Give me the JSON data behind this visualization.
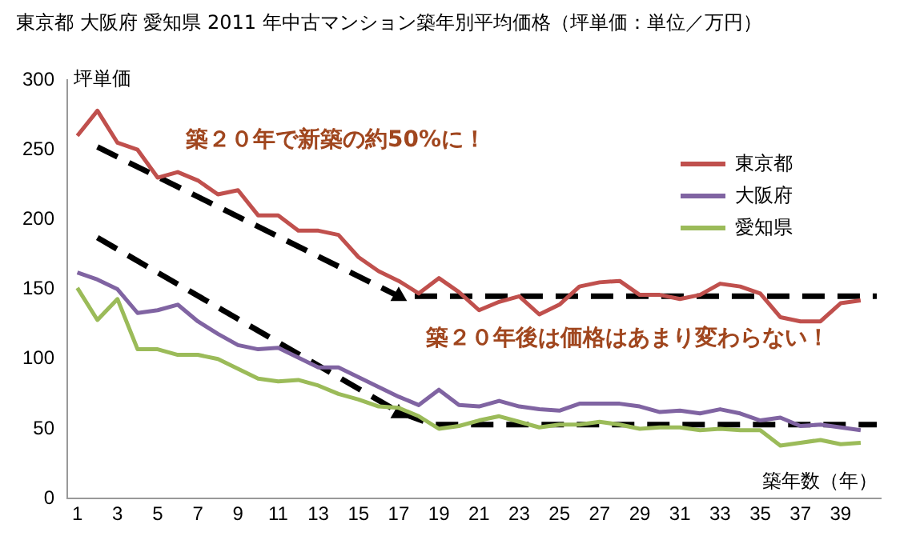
{
  "chart_data": {
    "type": "line",
    "title": "東京都  大阪府  愛知県  2011 年中古マンション築年別平均価格（坪単価：単位／万円）",
    "ylabel": "坪単価",
    "xlabel": "築年数（年）",
    "x": [
      1,
      2,
      3,
      4,
      5,
      6,
      7,
      8,
      9,
      10,
      11,
      12,
      13,
      14,
      15,
      16,
      17,
      18,
      19,
      20,
      21,
      22,
      23,
      24,
      25,
      26,
      27,
      28,
      29,
      30,
      31,
      32,
      33,
      34,
      35,
      36,
      37,
      38,
      39,
      40
    ],
    "xlim": [
      0.5,
      41
    ],
    "xticks": [
      1,
      3,
      5,
      7,
      9,
      11,
      13,
      15,
      17,
      19,
      21,
      23,
      25,
      27,
      29,
      31,
      33,
      35,
      37,
      39
    ],
    "ylim": [
      0,
      300
    ],
    "yticks": [
      0,
      50,
      100,
      150,
      200,
      250,
      300
    ],
    "grid": false,
    "legend": "top right",
    "marker": "none",
    "line_style": "solid",
    "series": [
      {
        "name": "東京都",
        "color": "#c0504d",
        "values": [
          260,
          278,
          255,
          250,
          230,
          234,
          228,
          218,
          221,
          203,
          203,
          192,
          192,
          189,
          173,
          163,
          156,
          147,
          158,
          148,
          135,
          141,
          145,
          132,
          139,
          152,
          155,
          156,
          146,
          146,
          143,
          146,
          154,
          152,
          147,
          130,
          127,
          127,
          140,
          142
        ]
      },
      {
        "name": "大阪府",
        "color": "#8064a2",
        "values": [
          162,
          157,
          150,
          133,
          135,
          139,
          127,
          118,
          110,
          107,
          108,
          101,
          94,
          94,
          87,
          80,
          73,
          67,
          78,
          67,
          66,
          70,
          66,
          64,
          63,
          68,
          68,
          68,
          66,
          62,
          63,
          61,
          64,
          61,
          56,
          58,
          52,
          53,
          51,
          49
        ]
      },
      {
        "name": "愛知県",
        "color": "#9bbb59",
        "values": [
          151,
          128,
          143,
          107,
          107,
          103,
          103,
          100,
          93,
          86,
          84,
          85,
          81,
          75,
          71,
          66,
          65,
          59,
          50,
          52,
          56,
          59,
          55,
          51,
          53,
          53,
          55,
          53,
          50,
          51,
          51,
          49,
          50,
          49,
          49,
          38,
          40,
          42,
          39,
          40
        ]
      },
      {
        "type": "line",
        "color": "#000000",
        "line_style": "dashed",
        "marker": "none",
        "x": [
          2,
          17,
          40.8
        ],
        "values": [
          252,
          145,
          145
        ]
      },
      {
        "type": "line",
        "color": "#000000",
        "line_style": "dashed",
        "marker": "none",
        "x": [
          2,
          17,
          18.7,
          40.8
        ],
        "values": [
          187,
          62,
          53,
          53
        ]
      },
      {
        "type": "scatter",
        "color": "#000000",
        "marker": "triangle",
        "x": [
          17,
          17
        ],
        "values": [
          145,
          61
        ]
      }
    ],
    "annotations": [
      "築２０年で新築の約50%に！",
      "築２０年後は価格はあまり変わらない！"
    ]
  }
}
